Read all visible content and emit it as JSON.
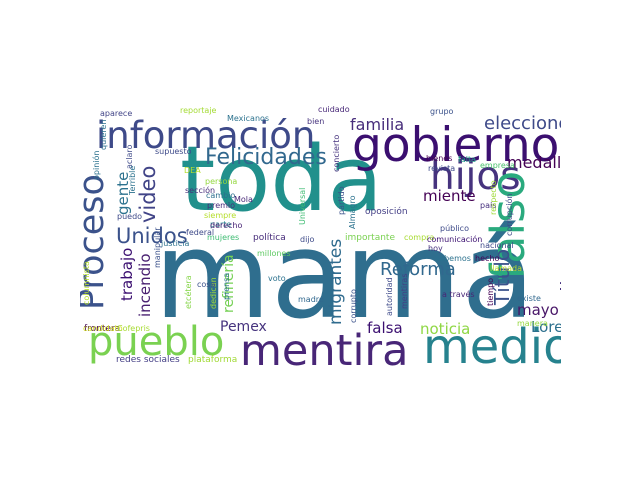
{
  "wordcloud": {
    "words": [
      {
        "text": "mamá",
        "color": "#2f6e8e"
      },
      {
        "text": "toda",
        "color": "#21908c"
      },
      {
        "text": "gobierno",
        "color": "#3b0f70"
      },
      {
        "text": "información",
        "color": "#3e4a89"
      },
      {
        "text": "mentira",
        "color": "#482677"
      },
      {
        "text": "medios",
        "color": "#26828e"
      },
      {
        "text": "pueblo",
        "color": "#7ad151"
      },
      {
        "text": "Proceso",
        "color": "#3b528b"
      },
      {
        "text": "hijos",
        "color": "#46337e"
      },
      {
        "text": "falso",
        "color": "#2aaa7e"
      },
      {
        "text": "Felicidades",
        "color": "#31688e"
      },
      {
        "text": "elecciones",
        "color": "#3e4a89"
      },
      {
        "text": "familia",
        "color": "#472d7b"
      },
      {
        "text": "medicamento",
        "color": "#46307e"
      },
      {
        "text": "Título",
        "color": "#3b528b"
      },
      {
        "text": "medalla",
        "color": "#440154"
      },
      {
        "text": "Unidos",
        "color": "#3b528b"
      },
      {
        "text": "video",
        "color": "#414487"
      },
      {
        "text": "gente",
        "color": "#2c728e"
      },
      {
        "text": "trabajo",
        "color": "#3b0f70"
      },
      {
        "text": "incendio",
        "color": "#481f70"
      },
      {
        "text": "Reforma",
        "color": "#31688e"
      },
      {
        "text": "migrantes",
        "color": "#2f6b8e"
      },
      {
        "text": "refinería",
        "color": "#75d054"
      },
      {
        "text": "mayo",
        "color": "#481668"
      },
      {
        "text": "noticia",
        "color": "#8fd744"
      },
      {
        "text": "falsa",
        "color": "#3b0f70"
      },
      {
        "text": "Loret",
        "color": "#2d708e"
      },
      {
        "text": "Pemex",
        "color": "#46337e"
      },
      {
        "text": "miente",
        "color": "#440154"
      },
      {
        "text": "redes sociales",
        "color": "#433e85"
      },
      {
        "text": "plataforma",
        "color": "#a2da37"
      },
      {
        "text": "sección",
        "color": "#472c7a"
      },
      {
        "text": "persona",
        "color": "#95d840"
      },
      {
        "text": "cambio",
        "color": "#2e6f8e"
      },
      {
        "text": "premio",
        "color": "#472d7b"
      },
      {
        "text": "siempre",
        "color": "#b5de2b"
      },
      {
        "text": "parte",
        "color": "#26828e"
      },
      {
        "text": "política",
        "color": "#472c7a"
      },
      {
        "text": "mujeres",
        "color": "#3fbc73"
      },
      {
        "text": "millones",
        "color": "#5ec962"
      },
      {
        "text": "voto",
        "color": "#2c728e"
      },
      {
        "text": "madre",
        "color": "#31688e"
      },
      {
        "text": "corrupto",
        "color": "#3b528b"
      },
      {
        "text": "dijo",
        "color": "#3e4a89"
      },
      {
        "text": "importante",
        "color": "#7ad151"
      },
      {
        "text": "compra",
        "color": "#a8db34"
      },
      {
        "text": "comunicación",
        "color": "#3b0f70"
      },
      {
        "text": "oposición",
        "color": "#433e85"
      },
      {
        "text": "Mola",
        "color": "#482878"
      },
      {
        "text": "país",
        "color": "#46307e"
      },
      {
        "text": "sabemos",
        "color": "#2c728e"
      },
      {
        "text": "empresa",
        "color": "#4ac16d"
      },
      {
        "text": "hoy",
        "color": "#46327e"
      },
      {
        "text": "público",
        "color": "#3e4a89"
      },
      {
        "text": "nacional",
        "color": "#3e4a89"
      },
      {
        "text": "llamada",
        "color": "#b8de29"
      },
      {
        "text": "existe",
        "color": "#31688e"
      },
      {
        "text": "manera",
        "color": "#95d840"
      },
      {
        "text": "a través",
        "color": "#482677"
      },
      {
        "text": "hecho",
        "color": "#440154"
      },
      {
        "text": "bienes",
        "color": "#440154"
      },
      {
        "text": "revista",
        "color": "#3e4a89"
      },
      {
        "text": "falta",
        "color": "#1fa187"
      },
      {
        "text": "grupo",
        "color": "#3b528b"
      },
      {
        "text": "cuidado",
        "color": "#482878"
      },
      {
        "text": "bien",
        "color": "#46337e"
      },
      {
        "text": "reportaje",
        "color": "#a5db36"
      },
      {
        "text": "Mexicanos",
        "color": "#2c728e"
      },
      {
        "text": "aparece",
        "color": "#414487"
      },
      {
        "text": "supuesto",
        "color": "#3e4a89"
      },
      {
        "text": "DEA",
        "color": "#b5de2b"
      },
      {
        "text": "justicia",
        "color": "#2c728e"
      },
      {
        "text": "federal",
        "color": "#3e4a89"
      },
      {
        "text": "dedican",
        "color": "#a0da39"
      },
      {
        "text": "prensa",
        "color": "#2c728e"
      },
      {
        "text": "cosa",
        "color": "#3b528b"
      },
      {
        "text": "derecho",
        "color": "#482475"
      },
      {
        "text": "frontera",
        "color": "#440154"
      },
      {
        "text": "candidato",
        "color": "#d2e21b"
      },
      {
        "text": "Cofepris",
        "color": "#a8db34"
      },
      {
        "text": "puedo",
        "color": "#3e4a89"
      },
      {
        "text": "opinión",
        "color": "#2c728e"
      },
      {
        "text": "quieren",
        "color": "#2c728e"
      },
      {
        "text": "aclaro",
        "color": "#3e4a89"
      },
      {
        "text": "Terrible",
        "color": "#2c728e"
      },
      {
        "text": "manipular",
        "color": "#3b528b"
      },
      {
        "text": "etcétera",
        "color": "#86d549"
      },
      {
        "text": "columnista",
        "color": "#b5de2b"
      },
      {
        "text": "concierto",
        "color": "#46337e"
      },
      {
        "text": "Universal",
        "color": "#3fbc73"
      },
      {
        "text": "partido",
        "color": "#3b528b"
      },
      {
        "text": "Almagro",
        "color": "#2c728e"
      },
      {
        "text": "autoridad",
        "color": "#3e4a89"
      },
      {
        "text": "mentiras",
        "color": "#433e85"
      },
      {
        "text": "tiempo",
        "color": "#440154"
      },
      {
        "text": "respecto",
        "color": "#a0da39"
      },
      {
        "text": "corrupción",
        "color": "#3e4a89"
      }
    ]
  }
}
